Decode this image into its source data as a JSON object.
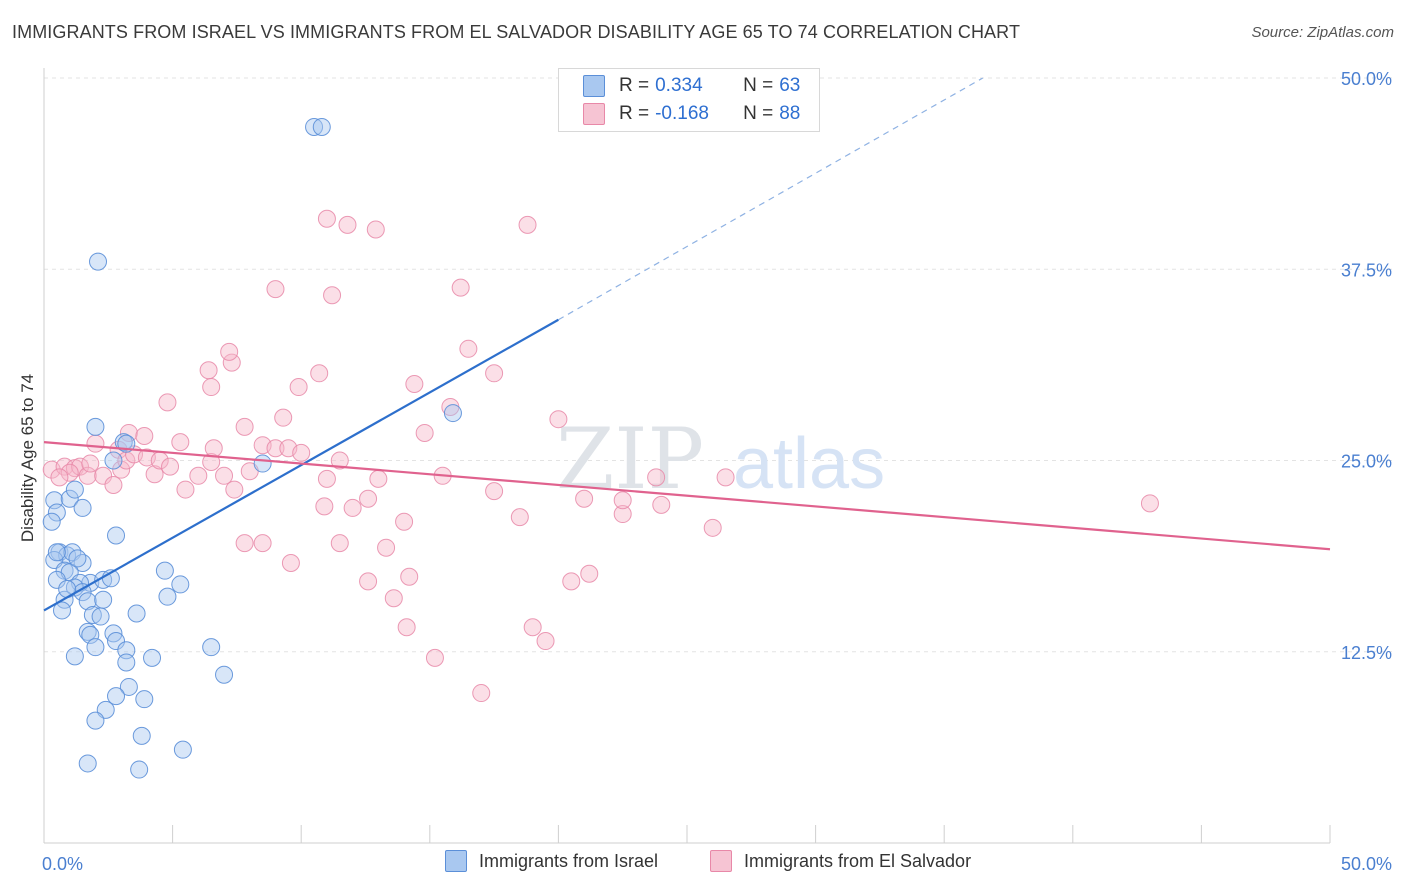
{
  "header": {
    "title": "IMMIGRANTS FROM ISRAEL VS IMMIGRANTS FROM EL SALVADOR DISABILITY AGE 65 TO 74 CORRELATION CHART",
    "source": "Source: ZipAtlas.com"
  },
  "watermark": {
    "zip": "ZIP",
    "atlas": "atlas"
  },
  "legend": {
    "r_label": "R =",
    "n_label": "N =",
    "israel": {
      "r": "0.334",
      "n": "63"
    },
    "elsalvador": {
      "r": "-0.168",
      "n": "88"
    }
  },
  "bottom_legend": {
    "israel": "Immigrants from Israel",
    "elsalvador": "Immigrants from El Salvador"
  },
  "colors": {
    "israel_fill": "#a9c8f0",
    "israel_stroke": "#5b8fd8",
    "israel_line": "#2d6fcc",
    "elsalvador_fill": "#f6b8ca",
    "elsalvador_stroke": "#e888a8",
    "elsalvador_line": "#e0628e",
    "tick_text": "#4a7fd0"
  },
  "chart_data": {
    "type": "scatter",
    "title": "IMMIGRANTS FROM ISRAEL VS IMMIGRANTS FROM EL SALVADOR DISABILITY AGE 65 TO 74 CORRELATION CHART",
    "xlabel": "",
    "ylabel": "Disability Age 65 to 74",
    "xlim": [
      0,
      50
    ],
    "ylim": [
      0,
      50
    ],
    "x_tick_labels": [
      "0.0%",
      "50.0%"
    ],
    "y_ticks": [
      12.5,
      25.0,
      37.5,
      50.0
    ],
    "y_tick_labels": [
      "12.5%",
      "25.0%",
      "37.5%",
      "50.0%"
    ],
    "grid": "horizontal dashed",
    "legend_position": "top-center",
    "series": [
      {
        "name": "Immigrants from Israel",
        "r": 0.334,
        "n": 63,
        "trend": {
          "x": [
            0,
            20
          ],
          "y": [
            15.2,
            34.2
          ],
          "dashed_extension_to": [
            36.5,
            50
          ]
        },
        "points": [
          [
            0.4,
            22.4
          ],
          [
            0.5,
            21.6
          ],
          [
            0.3,
            21.0
          ],
          [
            0.6,
            19.0
          ],
          [
            0.9,
            18.8
          ],
          [
            0.4,
            18.5
          ],
          [
            1.1,
            19.0
          ],
          [
            1.5,
            18.3
          ],
          [
            0.8,
            17.8
          ],
          [
            1.0,
            17.7
          ],
          [
            0.5,
            17.2
          ],
          [
            1.8,
            17.0
          ],
          [
            1.4,
            17.0
          ],
          [
            2.3,
            17.2
          ],
          [
            1.2,
            16.7
          ],
          [
            1.5,
            16.4
          ],
          [
            0.8,
            15.9
          ],
          [
            1.7,
            15.8
          ],
          [
            2.3,
            15.9
          ],
          [
            0.7,
            15.2
          ],
          [
            1.9,
            14.9
          ],
          [
            2.2,
            14.8
          ],
          [
            1.7,
            13.8
          ],
          [
            1.8,
            13.6
          ],
          [
            2.7,
            13.7
          ],
          [
            2.8,
            13.2
          ],
          [
            2.0,
            12.8
          ],
          [
            3.2,
            12.6
          ],
          [
            1.2,
            12.2
          ],
          [
            4.2,
            12.1
          ],
          [
            3.2,
            11.8
          ],
          [
            6.5,
            12.8
          ],
          [
            7.0,
            11.0
          ],
          [
            3.3,
            10.2
          ],
          [
            2.8,
            9.6
          ],
          [
            3.9,
            9.4
          ],
          [
            2.4,
            8.7
          ],
          [
            2.0,
            8.0
          ],
          [
            3.8,
            7.0
          ],
          [
            5.4,
            6.1
          ],
          [
            1.7,
            5.2
          ],
          [
            3.7,
            4.8
          ],
          [
            1.0,
            22.5
          ],
          [
            1.5,
            21.9
          ],
          [
            1.2,
            23.1
          ],
          [
            2.8,
            20.1
          ],
          [
            4.7,
            17.8
          ],
          [
            4.8,
            16.1
          ],
          [
            5.3,
            16.9
          ],
          [
            2.7,
            25.0
          ],
          [
            3.1,
            26.2
          ],
          [
            3.2,
            26.1
          ],
          [
            2.0,
            27.2
          ],
          [
            8.5,
            24.8
          ],
          [
            15.9,
            28.1
          ],
          [
            2.1,
            38.0
          ],
          [
            10.5,
            46.8
          ],
          [
            10.8,
            46.8
          ],
          [
            0.5,
            19.0
          ],
          [
            1.3,
            18.6
          ],
          [
            0.9,
            16.6
          ],
          [
            2.6,
            17.3
          ],
          [
            3.6,
            15.0
          ]
        ]
      },
      {
        "name": "Immigrants from El Salvador",
        "r": -0.168,
        "n": 88,
        "trend": {
          "x": [
            0,
            50
          ],
          "y": [
            26.2,
            19.2
          ]
        },
        "points": [
          [
            0.3,
            24.4
          ],
          [
            0.8,
            24.6
          ],
          [
            1.2,
            24.5
          ],
          [
            1.4,
            24.6
          ],
          [
            1.0,
            24.2
          ],
          [
            0.6,
            23.9
          ],
          [
            1.7,
            24.0
          ],
          [
            2.3,
            24.0
          ],
          [
            2.7,
            23.4
          ],
          [
            2.9,
            25.7
          ],
          [
            3.0,
            24.4
          ],
          [
            3.2,
            25.0
          ],
          [
            3.5,
            25.4
          ],
          [
            4.0,
            25.2
          ],
          [
            4.3,
            24.1
          ],
          [
            4.5,
            25.0
          ],
          [
            4.9,
            24.6
          ],
          [
            5.3,
            26.2
          ],
          [
            5.5,
            23.1
          ],
          [
            6.0,
            24.0
          ],
          [
            6.5,
            24.9
          ],
          [
            7.0,
            24.0
          ],
          [
            7.4,
            23.1
          ],
          [
            8.0,
            24.3
          ],
          [
            8.5,
            26.0
          ],
          [
            9.0,
            25.8
          ],
          [
            9.5,
            25.8
          ],
          [
            10.0,
            25.5
          ],
          [
            2.0,
            26.1
          ],
          [
            3.3,
            26.8
          ],
          [
            3.9,
            26.6
          ],
          [
            6.6,
            25.8
          ],
          [
            7.8,
            27.2
          ],
          [
            9.3,
            27.8
          ],
          [
            11.0,
            23.8
          ],
          [
            12.0,
            21.9
          ],
          [
            11.5,
            25.0
          ],
          [
            13.0,
            23.8
          ],
          [
            14.8,
            26.8
          ],
          [
            15.5,
            24.0
          ],
          [
            17.5,
            23.0
          ],
          [
            18.5,
            21.3
          ],
          [
            20.0,
            27.7
          ],
          [
            21.0,
            22.5
          ],
          [
            22.5,
            21.5
          ],
          [
            24.0,
            22.1
          ],
          [
            26.0,
            20.6
          ],
          [
            26.5,
            23.9
          ],
          [
            1.8,
            24.8
          ],
          [
            6.4,
            30.9
          ],
          [
            6.5,
            29.8
          ],
          [
            7.3,
            31.4
          ],
          [
            7.2,
            32.1
          ],
          [
            4.8,
            28.8
          ],
          [
            9.9,
            29.8
          ],
          [
            10.7,
            30.7
          ],
          [
            14.4,
            30.0
          ],
          [
            16.5,
            32.3
          ],
          [
            17.5,
            30.7
          ],
          [
            15.8,
            28.5
          ],
          [
            10.9,
            22.0
          ],
          [
            12.6,
            22.5
          ],
          [
            14.0,
            21.0
          ],
          [
            7.8,
            19.6
          ],
          [
            8.5,
            19.6
          ],
          [
            9.6,
            18.3
          ],
          [
            11.5,
            19.6
          ],
          [
            12.6,
            17.1
          ],
          [
            13.3,
            19.3
          ],
          [
            13.6,
            16.0
          ],
          [
            14.2,
            17.4
          ],
          [
            14.1,
            14.1
          ],
          [
            15.2,
            12.1
          ],
          [
            17.0,
            9.8
          ],
          [
            19.0,
            14.1
          ],
          [
            19.5,
            13.2
          ],
          [
            20.5,
            17.1
          ],
          [
            21.2,
            17.6
          ],
          [
            22.5,
            22.4
          ],
          [
            23.8,
            23.9
          ],
          [
            43.0,
            22.2
          ],
          [
            9.0,
            36.2
          ],
          [
            11.2,
            35.8
          ],
          [
            11.0,
            40.8
          ],
          [
            11.8,
            40.4
          ],
          [
            12.9,
            40.1
          ],
          [
            16.2,
            36.3
          ],
          [
            18.8,
            40.4
          ]
        ]
      }
    ]
  }
}
